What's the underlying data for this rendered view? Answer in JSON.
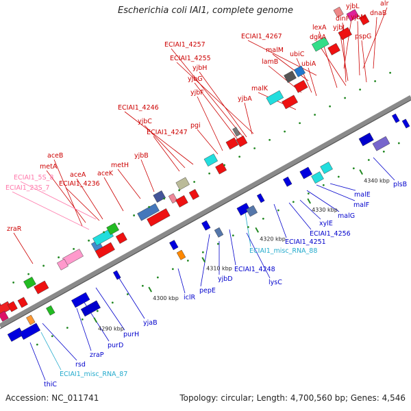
{
  "header": {
    "title": "Escherichia coli IAI1, complete genome"
  },
  "footer": {
    "accession": "Accession: NC_011741",
    "summary": "Topology: circular; Length: 4,700,560 bp; Genes: 4,546"
  },
  "colors": {
    "cds_forward": "#ee1111",
    "cds_reverse": "#1111dd",
    "rrna": "#ff88aa",
    "misc_rna": "#33bbdd",
    "backbone": "#8a8a8a",
    "tick": "#228822"
  },
  "scale": {
    "ticks": [
      {
        "kbp": 4290,
        "label": "4290 kbp"
      },
      {
        "kbp": 4300,
        "label": "4300 kbp"
      },
      {
        "kbp": 4310,
        "label": "4310 kbp"
      },
      {
        "kbp": 4320,
        "label": "4320 kbp"
      },
      {
        "kbp": 4330,
        "label": "4330 kbp"
      },
      {
        "kbp": 4340,
        "label": "4340 kbp"
      }
    ]
  },
  "upper_labels": [
    {
      "text": "alr",
      "color": "red"
    },
    {
      "text": "dnaB",
      "color": "red"
    },
    {
      "text": "yjbL",
      "color": "red"
    },
    {
      "text": "yjbM",
      "color": "red"
    },
    {
      "text": "dinF",
      "color": "red"
    },
    {
      "text": "yjbJ",
      "color": "red"
    },
    {
      "text": "lexA",
      "color": "red"
    },
    {
      "text": "dgkA",
      "color": "red"
    },
    {
      "text": "pspG",
      "color": "red"
    },
    {
      "text": "ECIAI1_4267",
      "color": "red"
    },
    {
      "text": "malM",
      "color": "red"
    },
    {
      "text": "ubiC",
      "color": "red"
    },
    {
      "text": "lamB",
      "color": "red"
    },
    {
      "text": "ubiA",
      "color": "red"
    },
    {
      "text": "ECIAI1_4257",
      "color": "red"
    },
    {
      "text": "ECIAI1_4255",
      "color": "red"
    },
    {
      "text": "yjbH",
      "color": "red"
    },
    {
      "text": "yjbG",
      "color": "red"
    },
    {
      "text": "malK",
      "color": "red"
    },
    {
      "text": "yjbF",
      "color": "red"
    },
    {
      "text": "yjbA",
      "color": "red"
    },
    {
      "text": "ECIAI1_4246",
      "color": "red"
    },
    {
      "text": "yjbC",
      "color": "red"
    },
    {
      "text": "pgi",
      "color": "red"
    },
    {
      "text": "ECIAI1_4247",
      "color": "red"
    },
    {
      "text": "yjbB",
      "color": "red"
    },
    {
      "text": "aceB",
      "color": "red"
    },
    {
      "text": "metH",
      "color": "red"
    },
    {
      "text": "metA",
      "color": "red"
    },
    {
      "text": "aceA",
      "color": "red"
    },
    {
      "text": "aceK",
      "color": "red"
    },
    {
      "text": "ECIAI1_5S_8",
      "color": "pink"
    },
    {
      "text": "ECIAI1_4236",
      "color": "red"
    },
    {
      "text": "ECIAI1_23S_7",
      "color": "pink"
    },
    {
      "text": "zraR",
      "color": "red"
    }
  ],
  "lower_labels": [
    {
      "text": "plsB",
      "color": "blue"
    },
    {
      "text": "malE",
      "color": "blue"
    },
    {
      "text": "malF",
      "color": "blue"
    },
    {
      "text": "malG",
      "color": "blue"
    },
    {
      "text": "xylE",
      "color": "blue"
    },
    {
      "text": "ECIAI1_4256",
      "color": "blue"
    },
    {
      "text": "ECIAI1_4251",
      "color": "blue"
    },
    {
      "text": "ECIAI1_misc_RNA_88",
      "color": "cyan"
    },
    {
      "text": "ECIAI1_4248",
      "color": "blue"
    },
    {
      "text": "lysC",
      "color": "blue"
    },
    {
      "text": "yjbD",
      "color": "blue"
    },
    {
      "text": "pepE",
      "color": "blue"
    },
    {
      "text": "iclR",
      "color": "blue"
    },
    {
      "text": "yjaB",
      "color": "blue"
    },
    {
      "text": "purH",
      "color": "blue"
    },
    {
      "text": "purD",
      "color": "blue"
    },
    {
      "text": "zraP",
      "color": "blue"
    },
    {
      "text": "rsd",
      "color": "blue"
    },
    {
      "text": "ECIAI1_misc_RNA_87",
      "color": "cyan"
    },
    {
      "text": "thiC",
      "color": "blue"
    }
  ]
}
